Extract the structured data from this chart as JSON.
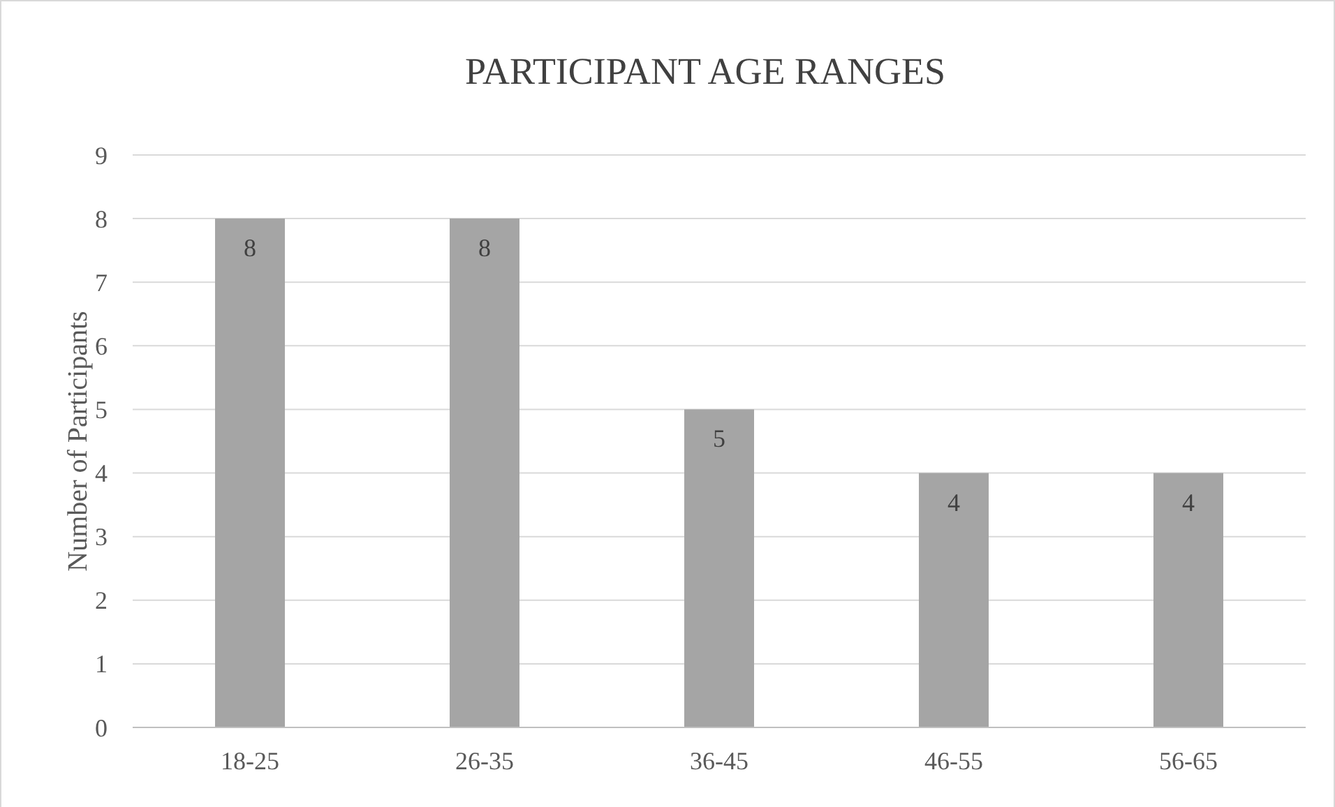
{
  "chart_data": {
    "type": "bar",
    "title": "PARTICIPANT AGE RANGES",
    "ylabel": "Number of Participants",
    "categories": [
      "18-25",
      "26-35",
      "36-45",
      "46-55",
      "56-65"
    ],
    "values": [
      8,
      8,
      5,
      4,
      4
    ],
    "color": "#a5a5a5",
    "ylim": [
      0,
      9
    ],
    "yticks": [
      0,
      1,
      2,
      3,
      4,
      5,
      6,
      7,
      8,
      9
    ],
    "grid": "y",
    "data_labels": true
  }
}
